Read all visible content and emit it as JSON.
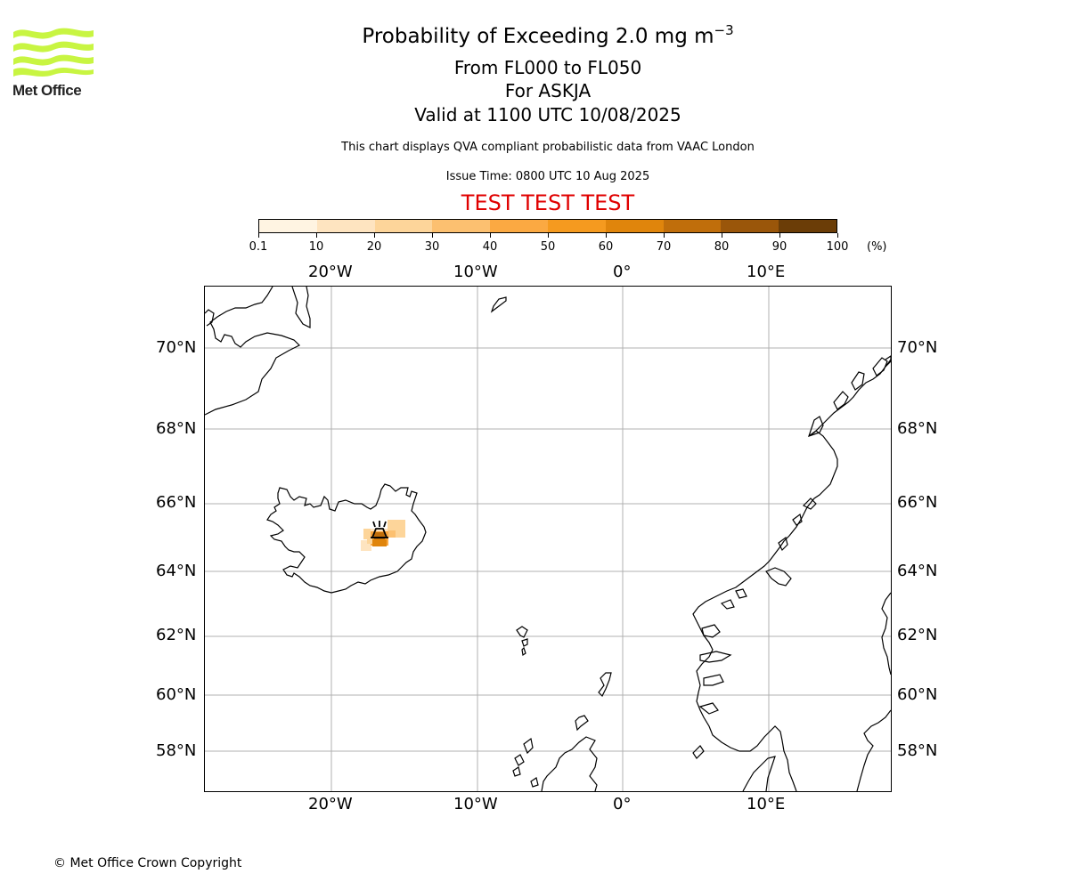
{
  "logo": {
    "text": "Met Office",
    "icon": "met-office-wave-logo",
    "color": "#c8f542"
  },
  "header": {
    "title_main": "Probability of Exceeding 2.0 mg m",
    "title_exp": "−3",
    "level_range": "From FL000 to FL050",
    "volcano": "For ASKJA",
    "valid": "Valid at 1100 UTC 10/08/2025",
    "description": "This chart displays QVA compliant probabilistic data from VAAC London",
    "issue": "Issue Time: 0800 UTC 10 Aug 2025",
    "test_banner": "TEST TEST TEST",
    "test_color": "#e00000"
  },
  "colorbar": {
    "tick_labels": [
      "0.1",
      "10",
      "20",
      "30",
      "40",
      "50",
      "60",
      "70",
      "80",
      "90",
      "100"
    ],
    "colors": [
      "#fff4e2",
      "#fee4c0",
      "#fdd59a",
      "#fcc070",
      "#fba942",
      "#f59a1f",
      "#e0850c",
      "#c06e0b",
      "#9a560a",
      "#6b3d07"
    ],
    "unit": "(%)"
  },
  "map": {
    "lon_top_labels": [
      "20°W",
      "10°W",
      "0°",
      "10°E"
    ],
    "lon_bottom_labels": [
      "20°W",
      "10°W",
      "0°",
      "10°E"
    ],
    "lat_labels": [
      "70°N",
      "68°N",
      "66°N",
      "64°N",
      "62°N",
      "60°N",
      "58°N"
    ],
    "volcano_icon": "volcano-icon",
    "plume_probability_pct": [
      10,
      20,
      40,
      60,
      70
    ]
  },
  "footer": {
    "copyright": "© Met Office Crown Copyright"
  }
}
